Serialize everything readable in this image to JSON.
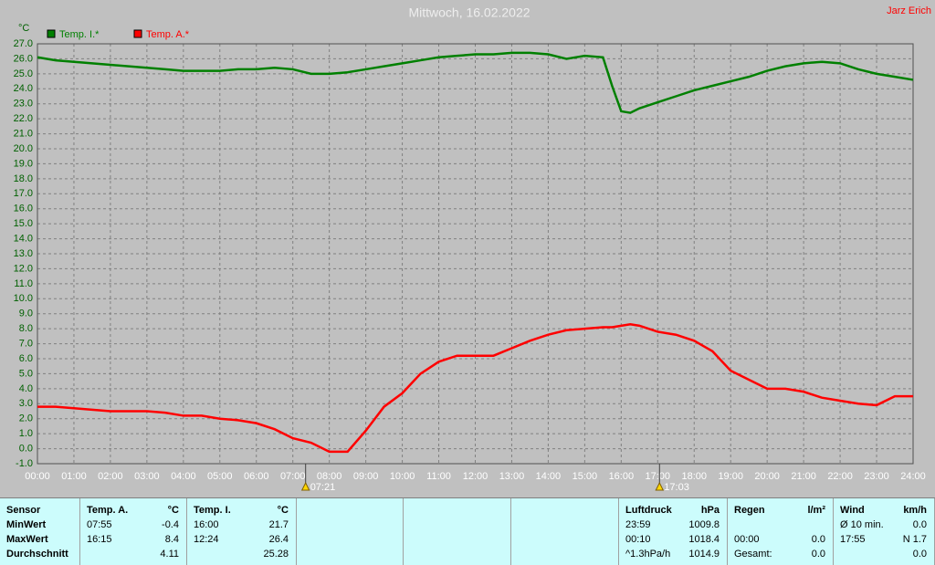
{
  "chart_data": {
    "type": "line",
    "title": "Mittwoch, 16.02.2022",
    "author": "Jarz Erich",
    "y_label": "°C",
    "x": [
      0,
      0.5,
      1,
      1.5,
      2,
      2.5,
      3,
      3.5,
      4,
      4.5,
      5,
      5.5,
      6,
      6.5,
      7,
      7.5,
      8,
      8.5,
      9,
      9.5,
      10,
      10.5,
      11,
      11.5,
      12,
      12.5,
      13,
      13.5,
      14,
      14.5,
      15,
      15.5,
      15.75,
      16,
      16.25,
      16.5,
      17,
      17.5,
      18,
      18.5,
      19,
      19.5,
      20,
      20.5,
      21,
      21.5,
      22,
      22.5,
      23,
      23.5,
      24
    ],
    "series": [
      {
        "name": "Temp. I.*",
        "color": "#008000",
        "values": [
          26.1,
          25.9,
          25.8,
          25.7,
          25.6,
          25.5,
          25.4,
          25.3,
          25.2,
          25.2,
          25.2,
          25.3,
          25.3,
          25.4,
          25.3,
          25.0,
          25.0,
          25.1,
          25.3,
          25.5,
          25.7,
          25.9,
          26.1,
          26.2,
          26.3,
          26.3,
          26.4,
          26.4,
          26.3,
          26.0,
          26.2,
          26.1,
          24.2,
          22.5,
          22.4,
          22.7,
          23.1,
          23.5,
          23.9,
          24.2,
          24.5,
          24.8,
          25.2,
          25.5,
          25.7,
          25.8,
          25.7,
          25.3,
          25.0,
          24.8,
          24.6
        ]
      },
      {
        "name": "Temp. A.*",
        "color": "#ff0000",
        "values": [
          2.8,
          2.8,
          2.7,
          2.6,
          2.5,
          2.5,
          2.5,
          2.4,
          2.2,
          2.2,
          2.0,
          1.9,
          1.7,
          1.3,
          0.7,
          0.4,
          -0.2,
          -0.2,
          1.2,
          2.8,
          3.7,
          5.0,
          5.8,
          6.2,
          6.2,
          6.2,
          6.7,
          7.2,
          7.6,
          7.9,
          8.0,
          8.1,
          8.1,
          8.2,
          8.3,
          8.2,
          7.8,
          7.6,
          7.2,
          6.5,
          5.2,
          4.6,
          4.0,
          4.0,
          3.8,
          3.4,
          3.2,
          3.0,
          2.9,
          3.5,
          3.5
        ]
      }
    ],
    "xlim": [
      0,
      24
    ],
    "xticks": [
      {
        "value": 0,
        "label": "00:00"
      },
      {
        "value": 1,
        "label": "01:00"
      },
      {
        "value": 2,
        "label": "02:00"
      },
      {
        "value": 3,
        "label": "03:00"
      },
      {
        "value": 4,
        "label": "04:00"
      },
      {
        "value": 5,
        "label": "05:00"
      },
      {
        "value": 6,
        "label": "06:00"
      },
      {
        "value": 7,
        "label": "07:00"
      },
      {
        "value": 8,
        "label": "08:00"
      },
      {
        "value": 9,
        "label": "09:00"
      },
      {
        "value": 10,
        "label": "10:00"
      },
      {
        "value": 11,
        "label": "11:00"
      },
      {
        "value": 12,
        "label": "12:00"
      },
      {
        "value": 13,
        "label": "13:00"
      },
      {
        "value": 14,
        "label": "14:00"
      },
      {
        "value": 15,
        "label": "15:00"
      },
      {
        "value": 16,
        "label": "16:00"
      },
      {
        "value": 17,
        "label": "17:00"
      },
      {
        "value": 18,
        "label": "18:00"
      },
      {
        "value": 19,
        "label": "19:00"
      },
      {
        "value": 20,
        "label": "20:00"
      },
      {
        "value": 21,
        "label": "21:00"
      },
      {
        "value": 22,
        "label": "22:00"
      },
      {
        "value": 23,
        "label": "23:00"
      },
      {
        "value": 24,
        "label": "24:00"
      }
    ],
    "ylim": [
      -1,
      27
    ],
    "yticks": [
      {
        "value": -1,
        "label": "-1.0"
      },
      {
        "value": 0,
        "label": "0.0"
      },
      {
        "value": 1,
        "label": "1.0"
      },
      {
        "value": 2,
        "label": "2.0"
      },
      {
        "value": 3,
        "label": "3.0"
      },
      {
        "value": 4,
        "label": "4.0"
      },
      {
        "value": 5,
        "label": "5.0"
      },
      {
        "value": 6,
        "label": "6.0"
      },
      {
        "value": 7,
        "label": "7.0"
      },
      {
        "value": 8,
        "label": "8.0"
      },
      {
        "value": 9,
        "label": "9.0"
      },
      {
        "value": 10,
        "label": "10.0"
      },
      {
        "value": 11,
        "label": "11.0"
      },
      {
        "value": 12,
        "label": "12.0"
      },
      {
        "value": 13,
        "label": "13.0"
      },
      {
        "value": 14,
        "label": "14.0"
      },
      {
        "value": 15,
        "label": "15.0"
      },
      {
        "value": 16,
        "label": "16.0"
      },
      {
        "value": 17,
        "label": "17.0"
      },
      {
        "value": 18,
        "label": "18.0"
      },
      {
        "value": 19,
        "label": "19.0"
      },
      {
        "value": 20,
        "label": "20.0"
      },
      {
        "value": 21,
        "label": "21.0"
      },
      {
        "value": 22,
        "label": "22.0"
      },
      {
        "value": 23,
        "label": "23.0"
      },
      {
        "value": 24,
        "label": "24.0"
      },
      {
        "value": 25,
        "label": "25.0"
      },
      {
        "value": 26,
        "label": "26.0"
      },
      {
        "value": 27,
        "label": "27.0"
      }
    ],
    "grid": true,
    "annotations": [
      {
        "x": 7.35,
        "label": "07:21"
      },
      {
        "x": 17.05,
        "label": "17:03"
      }
    ]
  },
  "stats_table": {
    "groups": [
      {
        "header": [
          "Sensor"
        ],
        "rows": [
          [
            "MinWert"
          ],
          [
            "MaxWert"
          ],
          [
            "Durchschnitt"
          ]
        ]
      },
      {
        "header": [
          "Temp. A.",
          "°C"
        ],
        "rows": [
          [
            "07:55",
            "-0.4"
          ],
          [
            "16:15",
            "8.4"
          ],
          [
            null,
            "4.11"
          ]
        ]
      },
      {
        "header": [
          "Temp. I.",
          "°C"
        ],
        "rows": [
          [
            "16:00",
            "21.7"
          ],
          [
            "12:24",
            "26.4"
          ],
          [
            null,
            "25.28"
          ]
        ]
      },
      {
        "header": [
          "Luftdruck",
          "hPa"
        ],
        "rows": [
          [
            "23:59",
            "1009.8"
          ],
          [
            "00:10",
            "1018.4"
          ],
          [
            "^1.3hPa/h",
            "1014.9"
          ]
        ]
      },
      {
        "header": [
          "Regen",
          "l/m²"
        ],
        "rows": [
          [
            null,
            null
          ],
          [
            "00:00",
            "0.0"
          ],
          [
            "Gesamt:",
            "0.0"
          ]
        ]
      },
      {
        "header": [
          "Wind",
          "km/h"
        ],
        "rows": [
          [
            "Ø 10 min.",
            "0.0"
          ],
          [
            "17:55",
            "N 1.7"
          ],
          [
            null,
            "0.0"
          ]
        ]
      }
    ]
  }
}
